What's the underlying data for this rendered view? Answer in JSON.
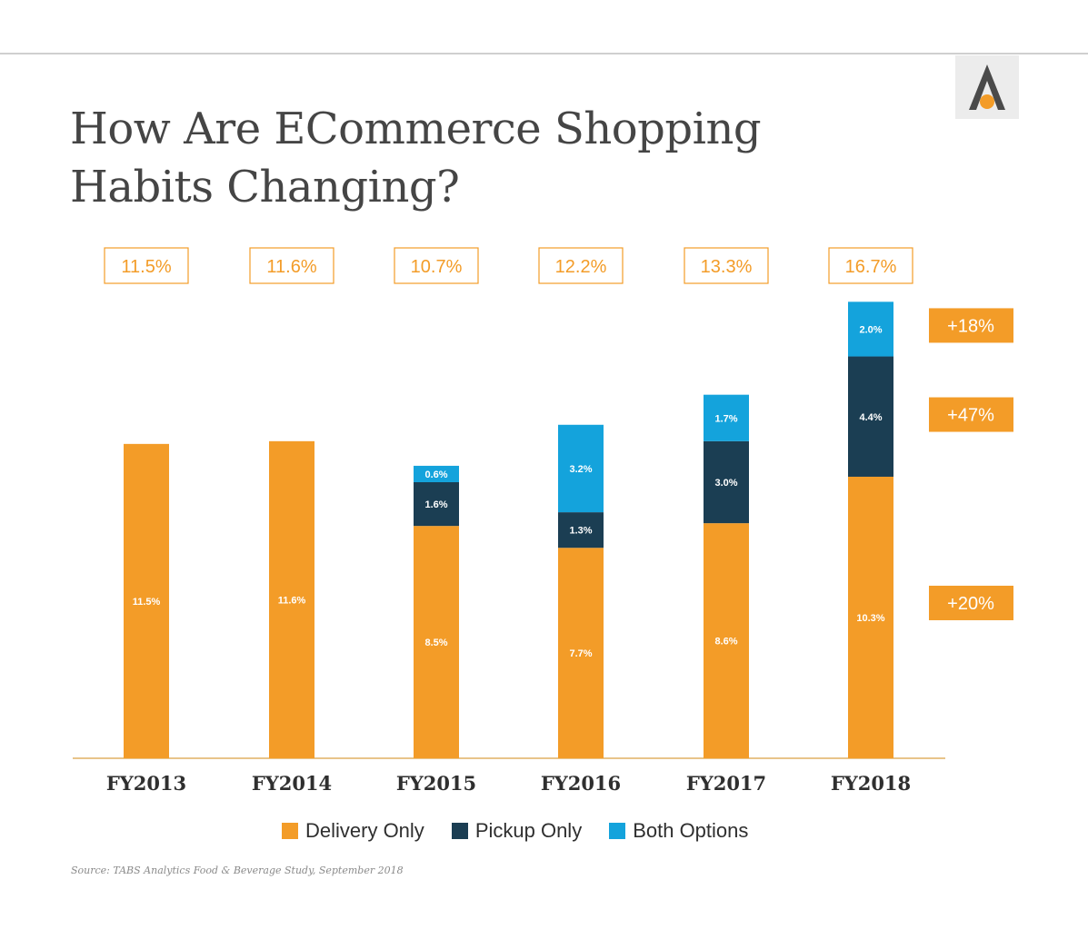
{
  "title_lines": [
    "How Are ECommerce Shopping",
    "Habits Changing?"
  ],
  "colors": {
    "delivery": "#f39c28",
    "pickup": "#1b3e53",
    "both": "#14a3dc",
    "total_box_border": "#f39c28",
    "total_box_text": "#f39c28",
    "growth_box": "#f39c28",
    "axis": "#e8c48a",
    "logo_shape": "#4a4a4a",
    "logo_dot": "#f39c28"
  },
  "logo": {
    "icon": "letter-a-logo-icon"
  },
  "chart_data": {
    "type": "bar",
    "stacked": true,
    "categories": [
      "FY2013",
      "FY2014",
      "FY2015",
      "FY2016",
      "FY2017",
      "FY2018"
    ],
    "series": [
      {
        "name": "Delivery Only",
        "key": "delivery",
        "values": [
          11.5,
          11.6,
          8.5,
          7.7,
          8.6,
          10.3
        ],
        "labels": [
          "11.5%",
          "11.6%",
          "8.5%",
          "7.7%",
          "8.6%",
          "10.3%"
        ]
      },
      {
        "name": "Pickup Only",
        "key": "pickup",
        "values": [
          0,
          0,
          1.6,
          1.3,
          3.0,
          4.4
        ],
        "labels": [
          "",
          "",
          "1.6%",
          "1.3%",
          "3.0%",
          "4.4%"
        ]
      },
      {
        "name": "Both Options",
        "key": "both",
        "values": [
          0,
          0,
          0.6,
          3.2,
          1.7,
          2.0
        ],
        "labels": [
          "",
          "",
          "0.6%",
          "3.2%",
          "1.7%",
          "2.0%"
        ]
      }
    ],
    "totals": [
      "11.5%",
      "11.6%",
      "10.7%",
      "12.2%",
      "13.3%",
      "16.7%"
    ],
    "growth_labels": [
      {
        "series": "both",
        "text": "+18%"
      },
      {
        "series": "pickup",
        "text": "+47%"
      },
      {
        "series": "delivery",
        "text": "+20%"
      }
    ],
    "ylim": [
      0,
      17.5
    ],
    "grid": false,
    "legend_position": "bottom"
  },
  "source": "Source: TABS Analytics Food & Beverage Study, September 2018"
}
